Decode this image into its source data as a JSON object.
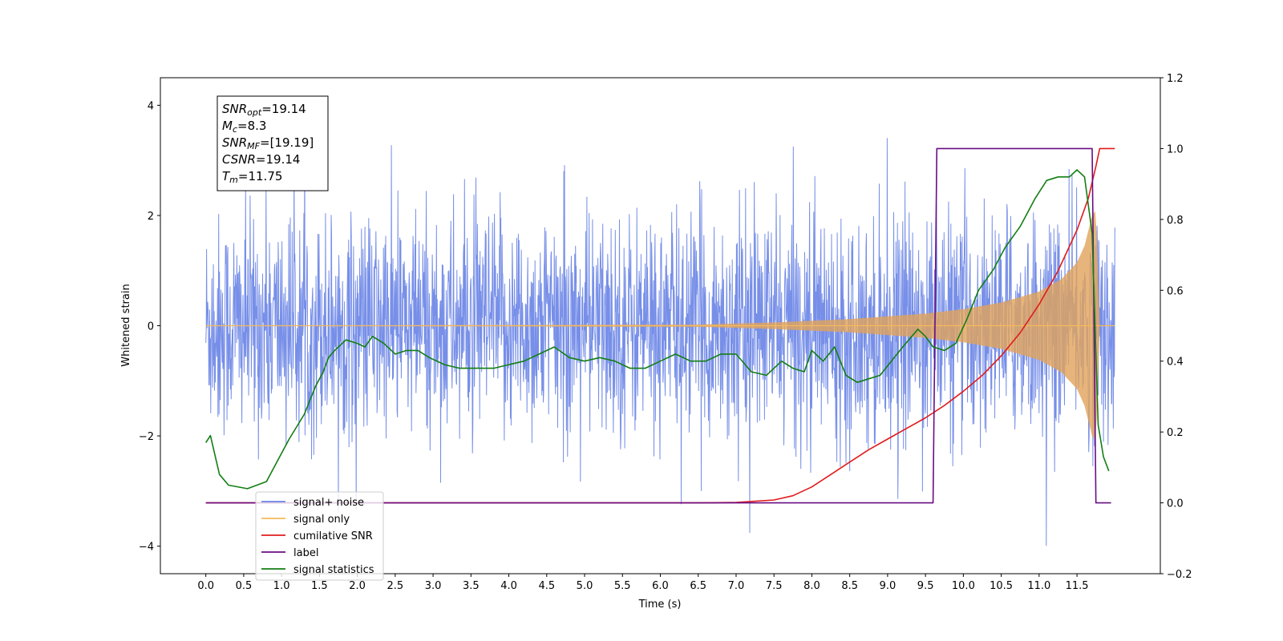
{
  "chart_data": {
    "type": "line",
    "xlabel": "Time (s)",
    "ylabel": "Whitened strain",
    "xlim": [
      -0.6,
      12.6
    ],
    "ylim": [
      -4.5,
      4.5
    ],
    "ylim_right": [
      -0.2,
      1.2
    ],
    "xticks": [
      0.0,
      0.5,
      1.0,
      1.5,
      2.0,
      2.5,
      3.0,
      3.5,
      4.0,
      4.5,
      5.0,
      5.5,
      6.0,
      6.5,
      7.0,
      7.5,
      8.0,
      8.5,
      9.0,
      9.5,
      10.0,
      10.5,
      11.0,
      11.5
    ],
    "xtick_labels": [
      "0.0",
      "0.5",
      "1.0",
      "1.5",
      "2.0",
      "2.5",
      "3.0",
      "3.5",
      "4.0",
      "4.5",
      "5.0",
      "5.5",
      "6.0",
      "6.5",
      "7.0",
      "7.5",
      "8.0",
      "8.5",
      "9.0",
      "9.5",
      "10.0",
      "10.5",
      "11.0",
      "11.5"
    ],
    "yticks_left": [
      -4,
      -2,
      0,
      2,
      4
    ],
    "yticks_right": [
      -0.2,
      0.0,
      0.2,
      0.4,
      0.6,
      0.8,
      1.0,
      1.2
    ],
    "ytick_labels_right": [
      "−0.2",
      "0.0",
      "0.2",
      "0.4",
      "0.6",
      "0.8",
      "1.0",
      "1.2"
    ],
    "grid": false,
    "legend_position": "lower-left",
    "info_box": {
      "lines": [
        {
          "sym": "SNR",
          "sub": "opt",
          "val": "=19.14"
        },
        {
          "sym": "M",
          "sub": "c",
          "val": "=8.3"
        },
        {
          "sym": "SNR",
          "sub": "MF",
          "val": "=[19.19]"
        },
        {
          "sym": "CSNR",
          "sub": "",
          "val": "=19.14"
        },
        {
          "sym": "T",
          "sub": "m",
          "val": "=11.75"
        }
      ]
    },
    "legend": [
      {
        "label": "signal+ noise",
        "color": "#6b86e6"
      },
      {
        "label": "signal only",
        "color": "#f5b95a"
      },
      {
        "label": "cumilative SNR",
        "color": "#e01b1b"
      },
      {
        "label": "label",
        "color": "#6a0d83"
      },
      {
        "label": "signal statistics",
        "color": "#137e13"
      }
    ],
    "series": [
      {
        "name": "signal+ noise",
        "axis": "left",
        "color": "#6b86e6",
        "description_note": "white noise band, approx ±1.6 sigma envelope with spikes up to ±4",
        "t_range": [
          0.0,
          12.0
        ],
        "std": 1.0
      },
      {
        "name": "signal only",
        "axis": "left",
        "color": "#f5b95a",
        "envelope_t": [
          0.0,
          6.5,
          7.5,
          8.5,
          9.0,
          9.5,
          10.0,
          10.5,
          11.0,
          11.3,
          11.5,
          11.6,
          11.7,
          11.75,
          11.8,
          12.0
        ],
        "envelope_amp": [
          0.0,
          0.02,
          0.06,
          0.12,
          0.17,
          0.22,
          0.3,
          0.42,
          0.62,
          0.85,
          1.15,
          1.45,
          2.0,
          2.1,
          0.0,
          0.0
        ]
      },
      {
        "name": "cumilative SNR",
        "axis": "right",
        "color": "#e01b1b",
        "x": [
          0.0,
          6.5,
          7.0,
          7.5,
          7.75,
          8.0,
          8.25,
          8.5,
          8.75,
          9.0,
          9.25,
          9.5,
          9.75,
          10.0,
          10.25,
          10.5,
          10.75,
          11.0,
          11.25,
          11.5,
          11.65,
          11.75,
          11.8,
          12.0
        ],
        "y": [
          0.0,
          0.0,
          0.001,
          0.008,
          0.02,
          0.045,
          0.08,
          0.115,
          0.15,
          0.18,
          0.21,
          0.24,
          0.275,
          0.315,
          0.36,
          0.415,
          0.48,
          0.56,
          0.655,
          0.77,
          0.86,
          0.95,
          1.0,
          1.0
        ]
      },
      {
        "name": "label",
        "axis": "right",
        "color": "#6a0d83",
        "x": [
          0.0,
          9.6,
          9.65,
          11.7,
          11.75,
          11.95
        ],
        "y": [
          0.0,
          0.0,
          1.0,
          1.0,
          0.0,
          0.0
        ]
      },
      {
        "name": "signal statistics",
        "axis": "right",
        "color": "#137e13",
        "x": [
          0.0,
          0.06,
          0.18,
          0.3,
          0.55,
          0.8,
          0.95,
          1.1,
          1.3,
          1.45,
          1.55,
          1.62,
          1.7,
          1.85,
          2.0,
          2.1,
          2.2,
          2.35,
          2.5,
          2.65,
          2.8,
          2.95,
          3.15,
          3.35,
          3.55,
          3.8,
          4.0,
          4.2,
          4.4,
          4.6,
          4.8,
          5.0,
          5.2,
          5.4,
          5.6,
          5.8,
          6.0,
          6.2,
          6.4,
          6.6,
          6.8,
          7.0,
          7.2,
          7.4,
          7.6,
          7.75,
          7.9,
          8.0,
          8.15,
          8.3,
          8.45,
          8.6,
          8.75,
          8.9,
          9.05,
          9.2,
          9.4,
          9.5,
          9.6,
          9.75,
          9.9,
          10.05,
          10.2,
          10.4,
          10.55,
          10.75,
          10.95,
          11.1,
          11.25,
          11.4,
          11.5,
          11.6,
          11.7,
          11.78,
          11.85,
          11.92
        ],
        "y": [
          0.17,
          0.19,
          0.08,
          0.05,
          0.04,
          0.06,
          0.12,
          0.18,
          0.25,
          0.33,
          0.37,
          0.41,
          0.43,
          0.46,
          0.45,
          0.44,
          0.47,
          0.45,
          0.42,
          0.43,
          0.43,
          0.41,
          0.39,
          0.38,
          0.38,
          0.38,
          0.39,
          0.4,
          0.42,
          0.44,
          0.41,
          0.4,
          0.41,
          0.4,
          0.38,
          0.38,
          0.4,
          0.42,
          0.4,
          0.4,
          0.42,
          0.42,
          0.37,
          0.36,
          0.4,
          0.38,
          0.37,
          0.43,
          0.4,
          0.44,
          0.36,
          0.34,
          0.35,
          0.36,
          0.4,
          0.44,
          0.49,
          0.47,
          0.44,
          0.43,
          0.45,
          0.52,
          0.6,
          0.66,
          0.72,
          0.78,
          0.86,
          0.91,
          0.92,
          0.92,
          0.94,
          0.92,
          0.76,
          0.22,
          0.13,
          0.09
        ]
      }
    ]
  }
}
